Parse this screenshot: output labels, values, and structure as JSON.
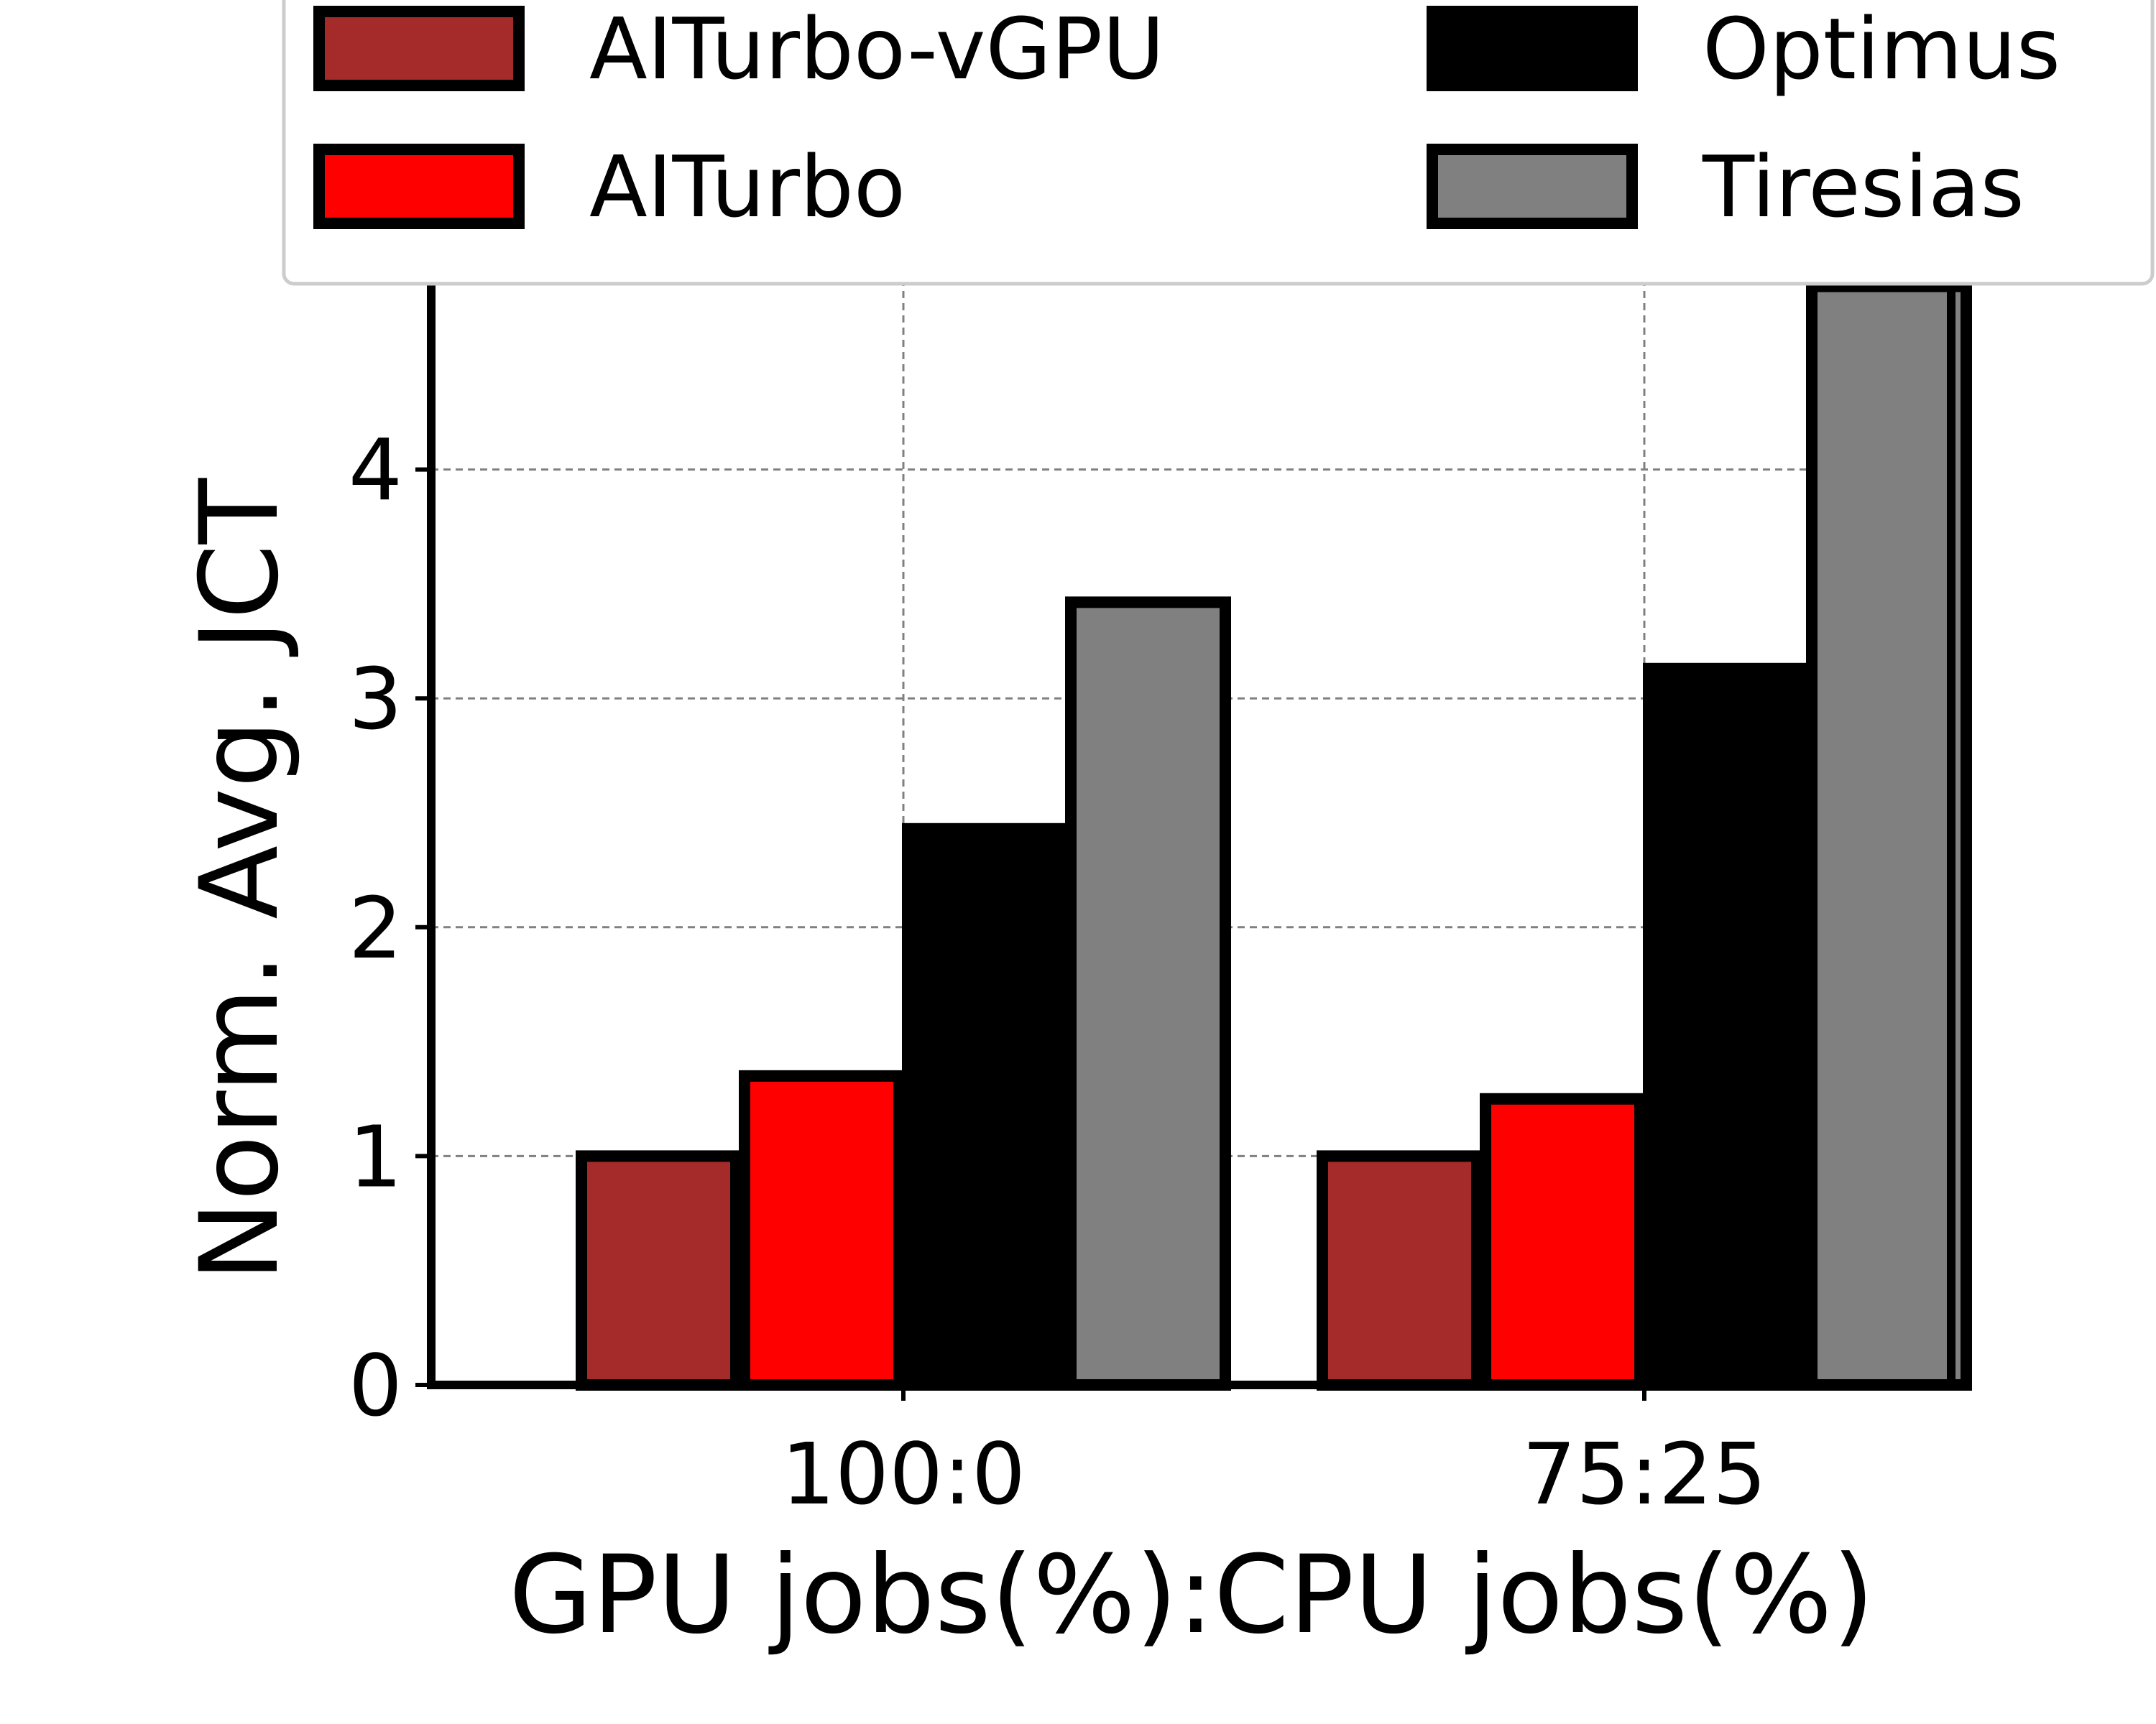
{
  "chart_data": {
    "type": "bar",
    "title": "",
    "xlabel": "GPU jobs(%):CPU jobs(%)",
    "ylabel": "Norm. Avg. JCT",
    "categories": [
      "100:0",
      "75:25"
    ],
    "ylim": [
      0,
      4.8
    ],
    "yticks": [
      "0",
      "1",
      "2",
      "3",
      "4"
    ],
    "grid": true,
    "legend_position": "top",
    "series": [
      {
        "name": "AITurbo-vGPU",
        "color": "#a52a2a",
        "values": [
          1.0,
          1.0
        ]
      },
      {
        "name": "AITurbo",
        "color": "#ff0000",
        "values": [
          1.35,
          1.25
        ]
      },
      {
        "name": "Optimus",
        "color": "#000000",
        "values": [
          2.43,
          3.13
        ]
      },
      {
        "name": "Tiresias",
        "color": "#808080",
        "values": [
          3.42,
          4.8
        ]
      }
    ]
  }
}
